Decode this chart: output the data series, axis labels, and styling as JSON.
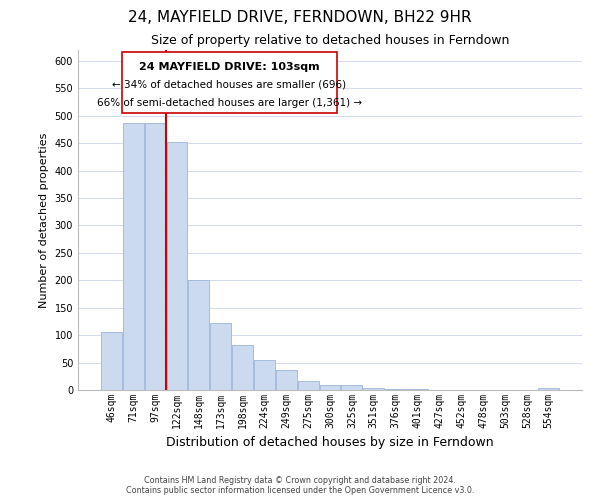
{
  "title": "24, MAYFIELD DRIVE, FERNDOWN, BH22 9HR",
  "subtitle": "Size of property relative to detached houses in Ferndown",
  "xlabel": "Distribution of detached houses by size in Ferndown",
  "ylabel": "Number of detached properties",
  "bar_labels": [
    "46sqm",
    "71sqm",
    "97sqm",
    "122sqm",
    "148sqm",
    "173sqm",
    "198sqm",
    "224sqm",
    "249sqm",
    "275sqm",
    "300sqm",
    "325sqm",
    "351sqm",
    "376sqm",
    "401sqm",
    "427sqm",
    "452sqm",
    "478sqm",
    "503sqm",
    "528sqm",
    "554sqm"
  ],
  "bar_values": [
    105,
    487,
    487,
    453,
    200,
    122,
    82,
    55,
    36,
    16,
    10,
    9,
    3,
    2,
    1,
    0,
    0,
    0,
    0,
    0,
    3
  ],
  "bar_color": "#ccdaf0",
  "bar_edge_color": "#9ab5d8",
  "vline_x_index": 2,
  "vline_color": "#cc0000",
  "ylim": [
    0,
    620
  ],
  "yticks": [
    0,
    50,
    100,
    150,
    200,
    250,
    300,
    350,
    400,
    450,
    500,
    550,
    600
  ],
  "annotation_title": "24 MAYFIELD DRIVE: 103sqm",
  "annotation_line1": "← 34% of detached houses are smaller (696)",
  "annotation_line2": "66% of semi-detached houses are larger (1,361) →",
  "annotation_box_color": "#ffffff",
  "annotation_box_edge": "#cc0000",
  "footer1": "Contains HM Land Registry data © Crown copyright and database right 2024.",
  "footer2": "Contains public sector information licensed under the Open Government Licence v3.0.",
  "grid_color": "#ccd5e8",
  "title_fontsize": 11,
  "subtitle_fontsize": 9,
  "xlabel_fontsize": 9,
  "ylabel_fontsize": 8,
  "tick_fontsize": 7,
  "ann_title_fontsize": 8,
  "ann_text_fontsize": 7.5
}
